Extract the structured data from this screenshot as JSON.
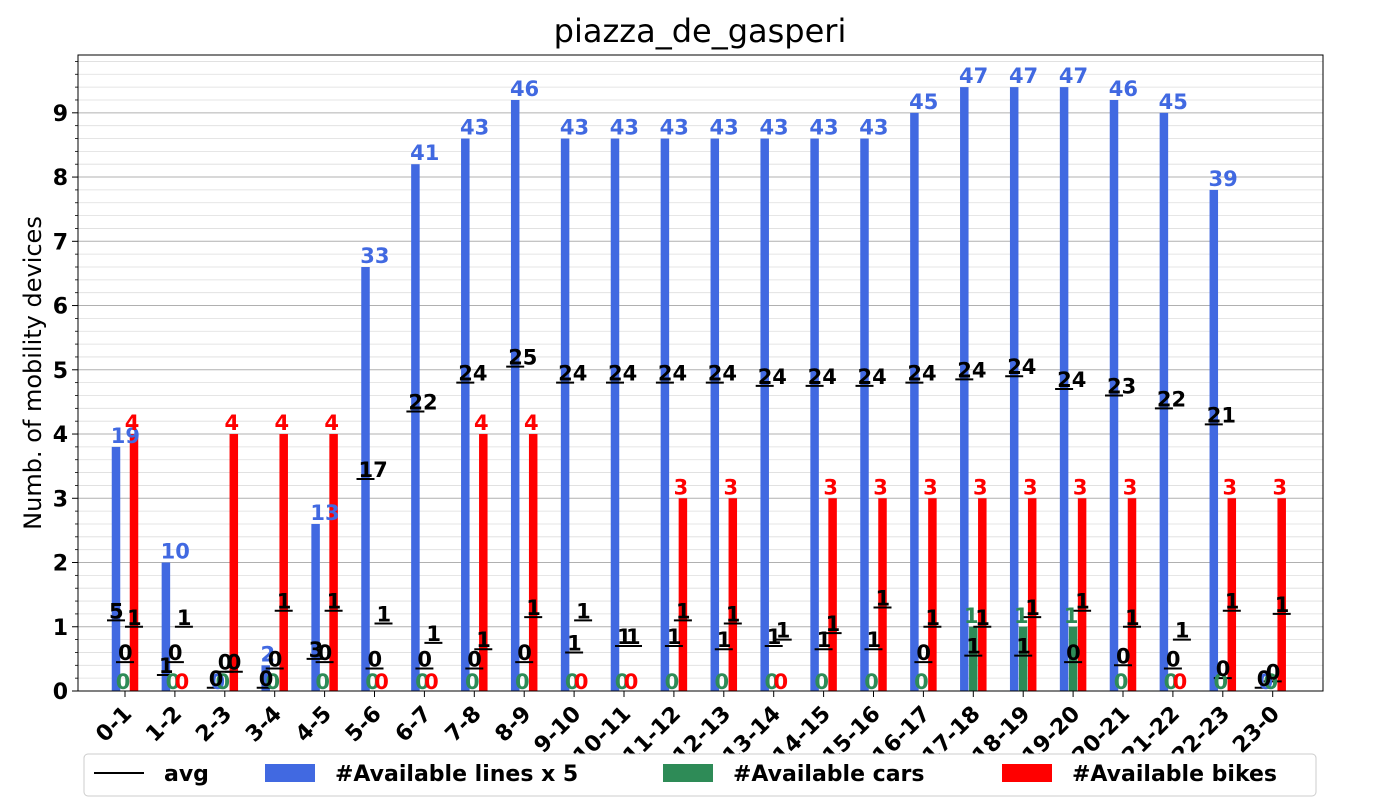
{
  "chart_data": {
    "type": "bar",
    "title": "piazza_de_gasperi",
    "ylabel": "Numb. of mobility devices",
    "xlabel": "",
    "ylim": [
      0,
      9.9
    ],
    "yticks": [
      "0",
      "1",
      "2",
      "3",
      "4",
      "5",
      "6",
      "7",
      "8",
      "9"
    ],
    "grid": true,
    "legend_position": "bottom",
    "categories": [
      "0-1",
      "1-2",
      "2-3",
      "3-4",
      "4-5",
      "5-6",
      "6-7",
      "7-8",
      "8-9",
      "9-10",
      "10-11",
      "11-12",
      "12-13",
      "13-14",
      "14-15",
      "15-16",
      "16-17",
      "17-18",
      "18-19",
      "19-20",
      "20-21",
      "21-22",
      "22-23",
      "23-0"
    ],
    "series": [
      {
        "name": "#Available lines x 5",
        "color": "#4169e1",
        "values": [
          3.8,
          2.0,
          0,
          0.4,
          2.6,
          6.6,
          8.2,
          8.6,
          9.2,
          8.6,
          8.6,
          8.6,
          8.6,
          8.6,
          8.6,
          8.6,
          9.0,
          9.4,
          9.4,
          9.4,
          9.2,
          9.0,
          7.8,
          0
        ],
        "labels": [
          "19",
          "10",
          "0",
          "2",
          "13",
          "33",
          "41",
          "43",
          "46",
          "43",
          "43",
          "43",
          "43",
          "43",
          "43",
          "43",
          "45",
          "47",
          "47",
          "47",
          "46",
          "45",
          "39",
          "0"
        ]
      },
      {
        "name": "#Available cars",
        "color": "#2e8b57",
        "values": [
          0,
          0,
          0,
          0,
          0,
          0,
          0,
          0,
          0,
          0,
          0,
          0,
          0,
          0,
          0,
          0,
          0,
          1,
          1,
          1,
          0,
          0,
          0,
          0
        ],
        "labels": [
          "0",
          "0",
          "0",
          "0",
          "0",
          "0",
          "0",
          "0",
          "0",
          "0",
          "0",
          "0",
          "0",
          "0",
          "0",
          "0",
          "0",
          "1",
          "1",
          "1",
          "0",
          "0",
          "0",
          "0"
        ]
      },
      {
        "name": "#Available bikes",
        "color": "#ff0000",
        "values": [
          4,
          0,
          4,
          4,
          4,
          0,
          0,
          4,
          4,
          0,
          0,
          3,
          3,
          0,
          3,
          3,
          3,
          3,
          3,
          3,
          3,
          0,
          3,
          3
        ],
        "labels": [
          "4",
          "0",
          "4",
          "4",
          "4",
          "0",
          "0",
          "4",
          "4",
          "0",
          "0",
          "3",
          "3",
          "0",
          "3",
          "3",
          "3",
          "3",
          "3",
          "3",
          "3",
          "0",
          "3",
          "3"
        ]
      }
    ],
    "avg": {
      "name": "avg",
      "color": "#000000",
      "lines": [
        4.84,
        2.0,
        0.0,
        0.4,
        2.6,
        6.6,
        8.2,
        8.6,
        9.2,
        8.6,
        8.6,
        8.6,
        8.6,
        8.6,
        8.6,
        8.6,
        9.0,
        9.4,
        9.4,
        9.4,
        9.2,
        9.0,
        7.8,
        0.0
      ],
      "lines_labels": [
        "5",
        "1",
        "0",
        "0",
        "3",
        "17",
        "22",
        "24",
        "25",
        "24",
        "24",
        "24",
        "24",
        "24",
        "24",
        "24",
        "24",
        "24",
        "24",
        "24",
        "23",
        "22",
        "21",
        "0"
      ],
      "lines_values": [
        1.1,
        0.25,
        0.05,
        0.05,
        0.5,
        3.3,
        4.35,
        4.8,
        5.05,
        4.8,
        4.8,
        4.8,
        4.8,
        4.75,
        4.75,
        4.75,
        4.8,
        4.85,
        4.9,
        4.7,
        4.6,
        4.4,
        4.15,
        0.05
      ],
      "cars_labels": [
        "0",
        "0",
        "0",
        "0",
        "0",
        "0",
        "0",
        "0",
        "0",
        "1",
        "1",
        "1",
        "1",
        "1",
        "1",
        "1",
        "0",
        "1",
        "1",
        "0",
        "0",
        "0",
        "0",
        "0"
      ],
      "cars_values": [
        0.45,
        0.45,
        0.3,
        0.35,
        0.45,
        0.35,
        0.35,
        0.35,
        0.45,
        0.6,
        0.7,
        0.7,
        0.65,
        0.7,
        0.65,
        0.65,
        0.45,
        0.55,
        0.55,
        0.45,
        0.4,
        0.35,
        0.2,
        0.15
      ],
      "bikes_labels": [
        "1",
        "1",
        "0",
        "1",
        "1",
        "1",
        "1",
        "1",
        "1",
        "1",
        "1",
        "1",
        "1",
        "1",
        "1",
        "1",
        "1",
        "1",
        "1",
        "1",
        "1",
        "1",
        "1",
        "1"
      ],
      "bikes_values": [
        1.0,
        1.0,
        0.3,
        1.25,
        1.25,
        1.05,
        0.75,
        0.65,
        1.15,
        1.1,
        0.7,
        1.1,
        1.05,
        0.8,
        0.9,
        1.3,
        1.0,
        1.0,
        1.15,
        1.25,
        1.0,
        0.8,
        1.25,
        1.2
      ]
    }
  }
}
